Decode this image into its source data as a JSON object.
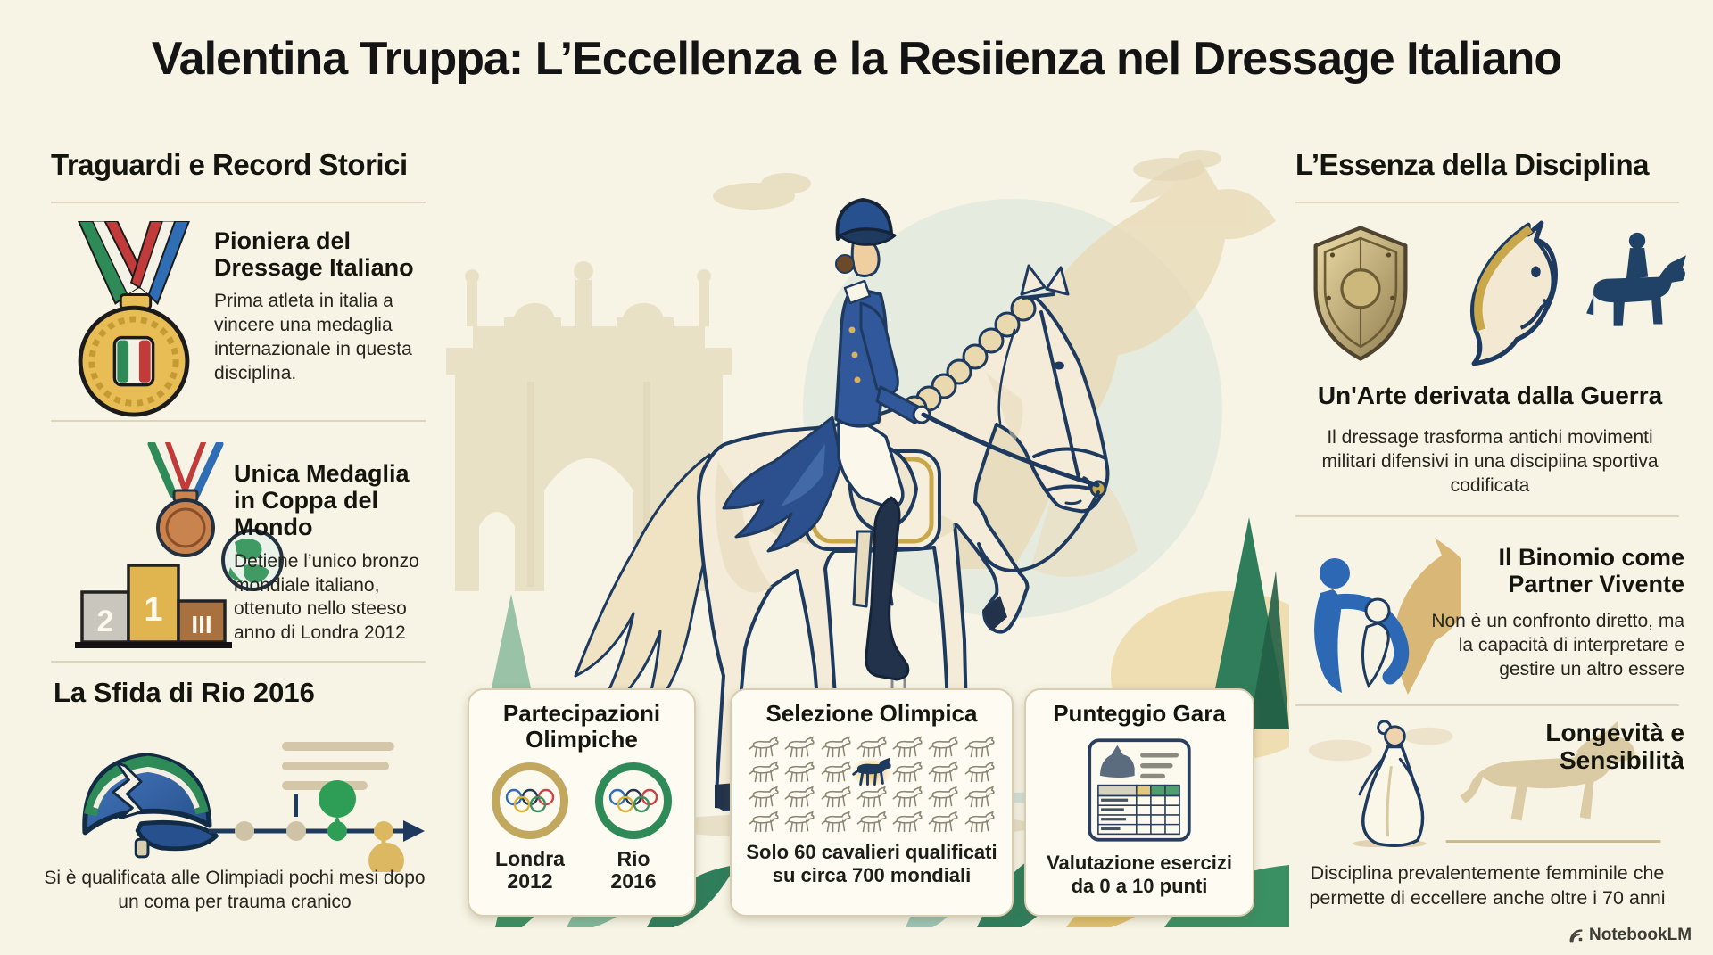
{
  "title": "Valentina Truppa: L’Eccellenza e la Resiienza nel Dressage Italiano",
  "left": {
    "header": "Traguardi e Record Storici",
    "sections": [
      {
        "title": "Pioniera del Dressage Italiano",
        "body": "Prima atleta in italia a vincere una medaglia internazionale in questa disciplina."
      },
      {
        "title": "Unica Medaglia in Coppa del Mondo",
        "body": "Detiene l’unico bronzo mondiale italiano, ottenuto nello steeso anno di Londra 2012"
      },
      {
        "title": "La Sfida di Rio 2016",
        "body": "Si è qualificata alle Olimpiadi pochi mesi dopo un coma per trauma cranico"
      }
    ],
    "podium": {
      "second": "2",
      "first": "1",
      "third": "III"
    }
  },
  "cards": [
    {
      "title": "Partecipazioni Olimpiche",
      "items": [
        {
          "label": "Londra 2012"
        },
        {
          "label": "Rio 2016"
        }
      ]
    },
    {
      "title": "Selezione Olimpica",
      "body": "Solo 60 cavalieri qualificati su circa 700 mondiali",
      "grid": {
        "rows": 4,
        "cols": 7,
        "highlight_index": 10
      }
    },
    {
      "title": "Punteggio Gara",
      "body": "Valutazione esercizi da 0 a 10 punti"
    }
  ],
  "right": {
    "header": "L’Essenza della Disciplina",
    "sections": [
      {
        "title": "Un'Arte derivata dalla Guerra",
        "body": "Il dressage trasforma antichi movimenti militari difensivi in una discipiina sportiva codificata"
      },
      {
        "title": "Il Binomio come Partner Vivente",
        "body": "Non è un confronto diretto, ma la capacità di interpretare e gestire un altro essere"
      },
      {
        "title": "Longevità e Sensibilità",
        "body": "Disciplina prevalentemente femminile che permette di eccellere anche oltre i 70 anni"
      }
    ]
  },
  "watermark": "NotebookLM",
  "icons": {
    "gold-medal-icon": "gold medal with Italian flag ribbon and tricolor shield",
    "bronze-medal-icon": "bronze medal with striped ribbon",
    "globe-icon": "green globe",
    "podium-icon": "podium with 2 / 1 / III blocks",
    "cracked-helmet-icon": "blue riding helmet with green stripe and crack",
    "timeline-icon": "timeline arrow with beige, green and gold milestone dots",
    "olympic-rings-icon": "five olympic rings",
    "horse-grid-icon": "grid of outlined horses with one solid blue horse",
    "scoresheet-icon": "score sheet with horse head and graded table",
    "shield-icon": "gold war shield",
    "horse-head-icon": "cream horse head with gold mane",
    "horse-rider-icon": "navy silhouette of dressage rider on horse",
    "human-horse-bond-icon": "abstract blue human embracing tan horse",
    "woman-horse-illustration": "elegant woman in white dress with tan horse silhouette",
    "notebooklm-logo": "NotebookLM arc logo",
    "center-illustration": "dressage rider in navy tailcoat on cream horse, Roman arch and faded horse backdrop"
  },
  "colors": {
    "background": "#f7f4e5",
    "navy": "#1e3a5f",
    "rider_blue": "#32589c",
    "green": "#2e8a57",
    "gold": "#c2a75f",
    "tan": "#e3d6b4",
    "card_bg": "#fdfbf2",
    "card_border": "#d8cdb0",
    "text": "#1c1c18"
  }
}
